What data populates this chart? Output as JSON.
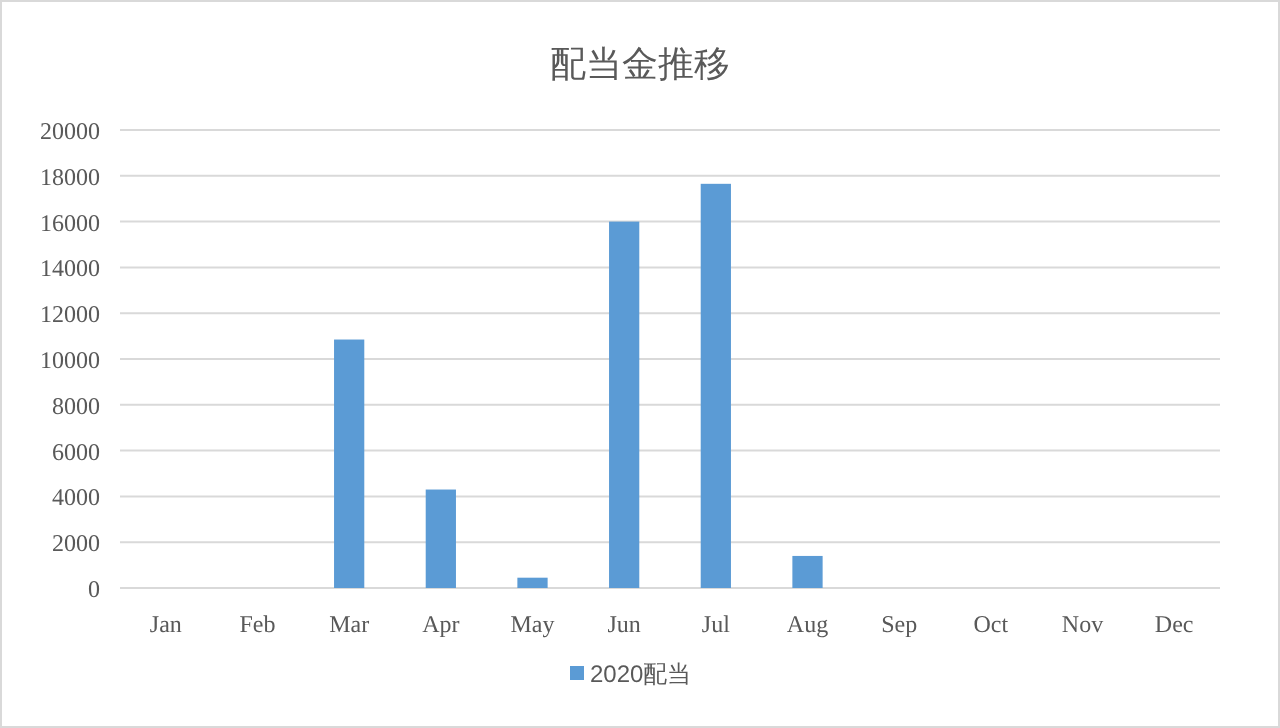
{
  "chart_data": {
    "type": "bar",
    "title": "配当金推移",
    "categories": [
      "Jan",
      "Feb",
      "Mar",
      "Apr",
      "May",
      "Jun",
      "Jul",
      "Aug",
      "Sep",
      "Oct",
      "Nov",
      "Dec"
    ],
    "series": [
      {
        "name": "2020配当",
        "color": "#5b9bd5",
        "values": [
          0,
          0,
          10850,
          4300,
          450,
          16000,
          17650,
          1400,
          0,
          0,
          0,
          0
        ]
      }
    ],
    "ylim": [
      0,
      20000
    ],
    "yticks": [
      0,
      2000,
      4000,
      6000,
      8000,
      10000,
      12000,
      14000,
      16000,
      18000,
      20000
    ],
    "grid": "y",
    "legend": "bottom"
  }
}
